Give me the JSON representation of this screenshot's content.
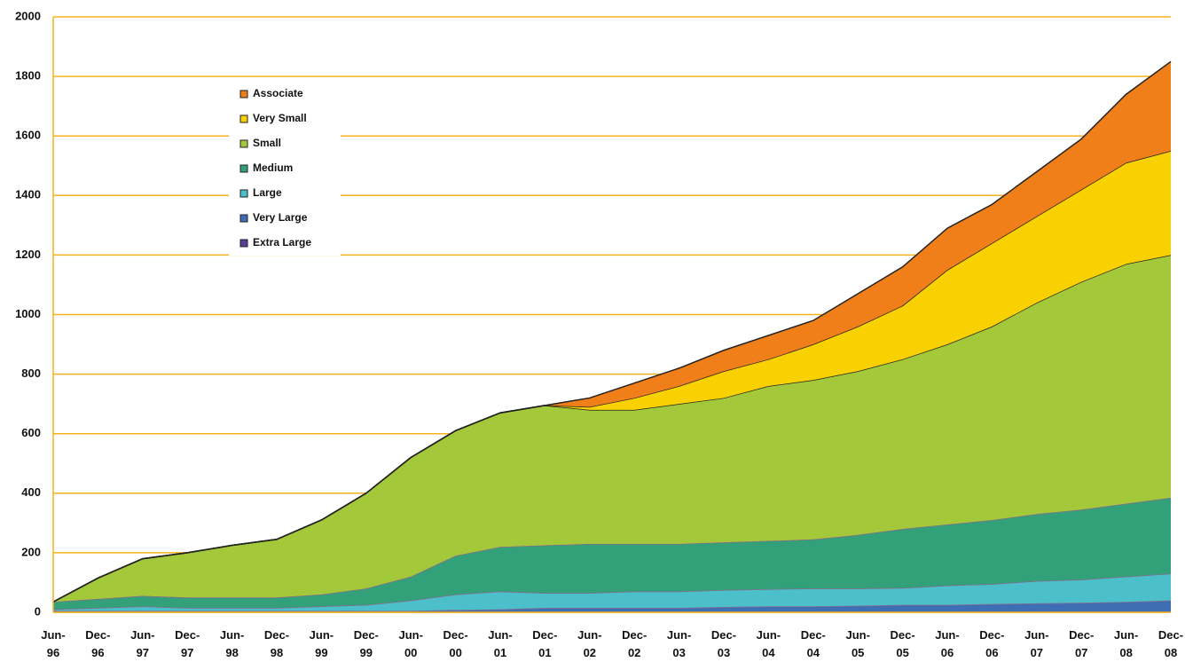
{
  "chart_data": {
    "type": "stacked_area",
    "categories": [
      "Jun-96",
      "Dec-96",
      "Jun-97",
      "Dec-97",
      "Jun-98",
      "Dec-98",
      "Jun-99",
      "Dec-99",
      "Jun-00",
      "Dec-00",
      "Jun-01",
      "Dec-01",
      "Jun-02",
      "Dec-02",
      "Jun-03",
      "Dec-03",
      "Jun-04",
      "Dec-04",
      "Jun-05",
      "Dec-05",
      "Jun-06",
      "Dec-06",
      "Jun-07",
      "Dec-07",
      "Jun-08",
      "Dec-08"
    ],
    "series": [
      {
        "name": "Extra Large",
        "color": "#5a3f99",
        "values": [
          2,
          2,
          2,
          2,
          2,
          2,
          2,
          2,
          2,
          2,
          2,
          2,
          2,
          2,
          2,
          2,
          2,
          2,
          2,
          2,
          2,
          2,
          2,
          2,
          2,
          2
        ]
      },
      {
        "name": "Very Large",
        "color": "#3e6fb5",
        "values": [
          3,
          3,
          3,
          3,
          3,
          3,
          3,
          3,
          3,
          6,
          8,
          13,
          13,
          13,
          13,
          16,
          18,
          18,
          20,
          23,
          23,
          26,
          28,
          30,
          33,
          38
        ]
      },
      {
        "name": "Large",
        "color": "#4bbfca",
        "values": [
          5,
          10,
          15,
          10,
          10,
          10,
          15,
          20,
          35,
          52,
          60,
          50,
          50,
          55,
          55,
          57,
          58,
          60,
          58,
          57,
          65,
          67,
          75,
          78,
          85,
          90
        ]
      },
      {
        "name": "Medium",
        "color": "#32a078",
        "values": [
          25,
          30,
          35,
          35,
          35,
          35,
          40,
          55,
          80,
          130,
          150,
          160,
          165,
          160,
          160,
          160,
          162,
          165,
          180,
          198,
          205,
          215,
          225,
          235,
          245,
          255
        ]
      },
      {
        "name": "Small",
        "color": "#a3c93a",
        "values": [
          0,
          70,
          125,
          150,
          175,
          195,
          250,
          320,
          400,
          420,
          450,
          470,
          450,
          450,
          470,
          485,
          520,
          535,
          550,
          570,
          605,
          650,
          710,
          765,
          805,
          815
        ]
      },
      {
        "name": "Very Small",
        "color": "#fad100",
        "values": [
          0,
          0,
          0,
          0,
          0,
          0,
          0,
          0,
          0,
          0,
          0,
          0,
          10,
          40,
          60,
          90,
          90,
          120,
          150,
          180,
          250,
          280,
          290,
          310,
          340,
          350
        ]
      },
      {
        "name": "Associate",
        "color": "#f07f19",
        "values": [
          0,
          0,
          0,
          0,
          0,
          0,
          0,
          0,
          0,
          0,
          0,
          0,
          30,
          50,
          60,
          70,
          80,
          80,
          110,
          130,
          140,
          130,
          150,
          170,
          230,
          300
        ]
      }
    ],
    "ylim": [
      0,
      2000
    ],
    "yticks": [
      0,
      200,
      400,
      600,
      800,
      1000,
      1200,
      1400,
      1600,
      1800,
      2000
    ],
    "grid": true
  }
}
